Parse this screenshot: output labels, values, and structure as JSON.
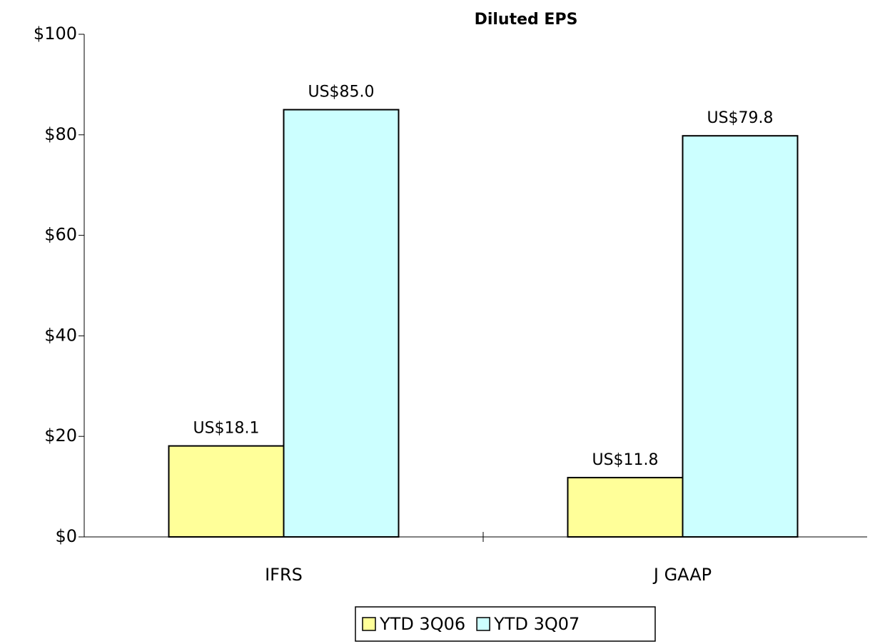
{
  "chart_data": {
    "type": "bar",
    "title": "Diluted EPS",
    "categories": [
      "IFRS",
      "J GAAP"
    ],
    "series": [
      {
        "name": "YTD 3Q06",
        "color": "#ffff99",
        "values": [
          18.1,
          11.8
        ],
        "value_labels": [
          "US$18.1",
          "US$11.8"
        ]
      },
      {
        "name": "YTD 3Q07",
        "color": "#ccffff",
        "values": [
          85.0,
          79.8
        ],
        "value_labels": [
          "US$85.0",
          "US$79.8"
        ]
      }
    ],
    "ylim": [
      0,
      100
    ],
    "yticks": [
      {
        "value": 0,
        "label": "$0"
      },
      {
        "value": 20,
        "label": "$20"
      },
      {
        "value": 40,
        "label": "$40"
      },
      {
        "value": 60,
        "label": "$60"
      },
      {
        "value": 80,
        "label": "$80"
      },
      {
        "value": 100,
        "label": "$100"
      }
    ],
    "grid": false,
    "legend": "bottom"
  }
}
